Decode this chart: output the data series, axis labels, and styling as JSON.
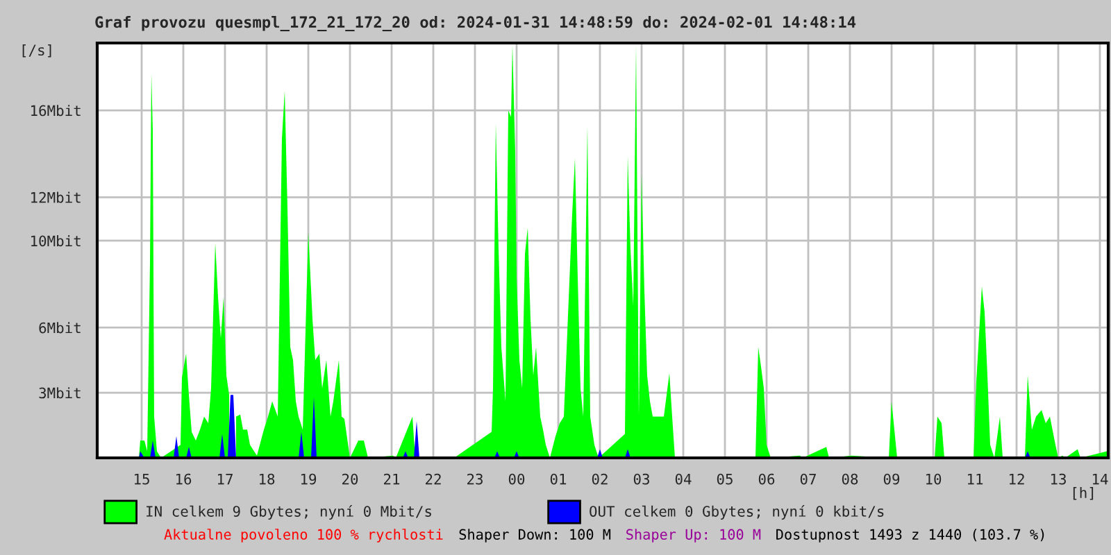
{
  "chart_data": {
    "type": "area",
    "title": "Graf provozu quesmpl_172_21_172_20 od: 2024-01-31 14:48:59 do: 2024-02-01 14:48:14",
    "xlabel": "[h]",
    "ylabel": "[/s]",
    "xlim": [
      "2024-01-31T13:56",
      "2024-02-01T14:12"
    ],
    "xticks": [
      {
        "value": "2024-01-31T15:00",
        "label": "15"
      },
      {
        "value": "2024-01-31T16:00",
        "label": "16"
      },
      {
        "value": "2024-01-31T17:00",
        "label": "17"
      },
      {
        "value": "2024-01-31T18:00",
        "label": "18"
      },
      {
        "value": "2024-01-31T19:00",
        "label": "19"
      },
      {
        "value": "2024-01-31T20:00",
        "label": "20"
      },
      {
        "value": "2024-01-31T21:00",
        "label": "21"
      },
      {
        "value": "2024-01-31T22:00",
        "label": "22"
      },
      {
        "value": "2024-01-31T23:00",
        "label": "23"
      },
      {
        "value": "2024-02-01T00:00",
        "label": "00"
      },
      {
        "value": "2024-02-01T01:00",
        "label": "01"
      },
      {
        "value": "2024-02-01T02:00",
        "label": "02"
      },
      {
        "value": "2024-02-01T03:00",
        "label": "03"
      },
      {
        "value": "2024-02-01T04:00",
        "label": "04"
      },
      {
        "value": "2024-02-01T05:00",
        "label": "05"
      },
      {
        "value": "2024-02-01T06:00",
        "label": "06"
      },
      {
        "value": "2024-02-01T07:00",
        "label": "07"
      },
      {
        "value": "2024-02-01T08:00",
        "label": "08"
      },
      {
        "value": "2024-02-01T09:00",
        "label": "09"
      },
      {
        "value": "2024-02-01T10:00",
        "label": "10"
      },
      {
        "value": "2024-02-01T11:00",
        "label": "11"
      },
      {
        "value": "2024-02-01T12:00",
        "label": "12"
      },
      {
        "value": "2024-02-01T13:00",
        "label": "13"
      },
      {
        "value": "2024-02-01T14:00",
        "label": "14"
      }
    ],
    "ylim": [
      0,
      19.1
    ],
    "yticks": [
      {
        "value": 3,
        "label": "3Mbit"
      },
      {
        "value": 6,
        "label": "6Mbit"
      },
      {
        "value": 10,
        "label": "10Mbit"
      },
      {
        "value": 12,
        "label": "12Mbit"
      },
      {
        "value": 16,
        "label": "16Mbit"
      }
    ],
    "grid": true,
    "legend": "bottom",
    "series": [
      {
        "name": "IN celkem 9 Gbytes; nyní 0 Mbit/s",
        "color": "#00ff00",
        "x": [
          "2024-01-31T13:56",
          "2024-01-31T14:56",
          "2024-01-31T14:58",
          "2024-01-31T15:04",
          "2024-01-31T15:08",
          "2024-01-31T15:12",
          "2024-01-31T15:14",
          "2024-01-31T15:16",
          "2024-01-31T15:18",
          "2024-01-31T15:22",
          "2024-01-31T15:28",
          "2024-01-31T15:56",
          "2024-01-31T15:58",
          "2024-01-31T16:04",
          "2024-01-31T16:08",
          "2024-01-31T16:12",
          "2024-01-31T16:18",
          "2024-01-31T16:24",
          "2024-01-31T16:30",
          "2024-01-31T16:36",
          "2024-01-31T16:40",
          "2024-01-31T16:46",
          "2024-01-31T16:50",
          "2024-01-31T16:54",
          "2024-01-31T16:58",
          "2024-01-31T17:02",
          "2024-01-31T17:06",
          "2024-01-31T17:10",
          "2024-01-31T17:16",
          "2024-01-31T17:22",
          "2024-01-31T17:26",
          "2024-01-31T17:32",
          "2024-01-31T17:36",
          "2024-01-31T17:46",
          "2024-01-31T17:56",
          "2024-01-31T18:02",
          "2024-01-31T18:08",
          "2024-01-31T18:16",
          "2024-01-31T18:22",
          "2024-01-31T18:26",
          "2024-01-31T18:30",
          "2024-01-31T18:34",
          "2024-01-31T18:38",
          "2024-01-31T18:42",
          "2024-01-31T18:46",
          "2024-01-31T18:52",
          "2024-01-31T19:00",
          "2024-01-31T19:06",
          "2024-01-31T19:10",
          "2024-01-31T19:16",
          "2024-01-31T19:20",
          "2024-01-31T19:26",
          "2024-01-31T19:32",
          "2024-01-31T19:36",
          "2024-01-31T19:44",
          "2024-01-31T19:48",
          "2024-01-31T19:52",
          "2024-01-31T20:00",
          "2024-01-31T20:12",
          "2024-01-31T20:20",
          "2024-01-31T20:26",
          "2024-01-31T21:02",
          "2024-01-31T21:06",
          "2024-01-31T21:30",
          "2024-01-31T21:34",
          "2024-01-31T22:30",
          "2024-01-31T23:24",
          "2024-01-31T23:26",
          "2024-01-31T23:30",
          "2024-01-31T23:34",
          "2024-01-31T23:38",
          "2024-01-31T23:44",
          "2024-01-31T23:48",
          "2024-01-31T23:52",
          "2024-01-31T23:54",
          "2024-01-31T23:58",
          "2024-02-01T00:00",
          "2024-02-01T00:04",
          "2024-02-01T00:08",
          "2024-02-01T00:12",
          "2024-02-01T00:16",
          "2024-02-01T00:20",
          "2024-02-01T00:24",
          "2024-02-01T00:28",
          "2024-02-01T00:34",
          "2024-02-01T00:38",
          "2024-02-01T00:42",
          "2024-02-01T00:48",
          "2024-02-01T00:56",
          "2024-02-01T01:02",
          "2024-02-01T01:08",
          "2024-02-01T01:16",
          "2024-02-01T01:20",
          "2024-02-01T01:24",
          "2024-02-01T01:28",
          "2024-02-01T01:32",
          "2024-02-01T01:36",
          "2024-02-01T01:42",
          "2024-02-01T01:46",
          "2024-02-01T01:52",
          "2024-02-01T01:58",
          "2024-02-01T02:36",
          "2024-02-01T02:40",
          "2024-02-01T02:44",
          "2024-02-01T02:48",
          "2024-02-01T02:52",
          "2024-02-01T02:56",
          "2024-02-01T03:00",
          "2024-02-01T03:04",
          "2024-02-01T03:08",
          "2024-02-01T03:12",
          "2024-02-01T03:16",
          "2024-02-01T03:24",
          "2024-02-01T03:32",
          "2024-02-01T03:40",
          "2024-02-01T03:44",
          "2024-02-01T03:48",
          "2024-02-01T05:44",
          "2024-02-01T05:48",
          "2024-02-01T05:52",
          "2024-02-01T05:56",
          "2024-02-01T06:00",
          "2024-02-01T06:06",
          "2024-02-01T06:48",
          "2024-02-01T06:52",
          "2024-02-01T07:26",
          "2024-02-01T07:30",
          "2024-02-01T08:02",
          "2024-02-01T08:56",
          "2024-02-01T09:00",
          "2024-02-01T09:04",
          "2024-02-01T09:08",
          "2024-02-01T10:02",
          "2024-02-01T10:06",
          "2024-02-01T10:12",
          "2024-02-01T10:16",
          "2024-02-01T10:58",
          "2024-02-01T11:02",
          "2024-02-01T11:10",
          "2024-02-01T11:14",
          "2024-02-01T11:18",
          "2024-02-01T11:22",
          "2024-02-01T11:28",
          "2024-02-01T11:36",
          "2024-02-01T11:40",
          "2024-02-01T12:12",
          "2024-02-01T12:16",
          "2024-02-01T12:22",
          "2024-02-01T12:28",
          "2024-02-01T12:36",
          "2024-02-01T12:42",
          "2024-02-01T12:48",
          "2024-02-01T12:56",
          "2024-02-01T13:00",
          "2024-02-01T13:06",
          "2024-02-01T13:10",
          "2024-02-01T13:28",
          "2024-02-01T13:32",
          "2024-02-01T14:10"
        ],
        "values": [
          0,
          0,
          0.8,
          0.8,
          0.3,
          9.0,
          17.7,
          15.1,
          1.9,
          0.3,
          0,
          0.6,
          3.7,
          4.8,
          2.9,
          1.2,
          0.8,
          1.3,
          1.9,
          1.6,
          3.2,
          9.9,
          7.4,
          5.5,
          7.4,
          3.8,
          2.9,
          null,
          1.9,
          2.0,
          1.3,
          1.3,
          0.6,
          0.1,
          1.3,
          1.9,
          2.6,
          1.9,
          14.7,
          16.9,
          11.5,
          5.1,
          4.5,
          2.6,
          1.9,
          1.3,
          10.4,
          6.4,
          4.5,
          4.8,
          3.2,
          4.5,
          1.9,
          2.6,
          4.5,
          1.9,
          1.8,
          0,
          0.8,
          0.8,
          0,
          0.1,
          0,
          1.9,
          0,
          0,
          1.2,
          3.2,
          15.4,
          9.6,
          5.1,
          2.6,
          16.0,
          15.7,
          19.0,
          14.1,
          8.3,
          4.5,
          3.2,
          9.4,
          10.6,
          6.4,
          3.8,
          5.1,
          1.9,
          1.3,
          0.6,
          0,
          1.0,
          1.6,
          1.9,
          8.1,
          11.2,
          13.8,
          8.3,
          3.2,
          1.9,
          15.3,
          1.9,
          0.6,
          0,
          1.1,
          13.9,
          9.6,
          7.0,
          19.0,
          1.9,
          13.1,
          7.7,
          3.8,
          2.6,
          1.9,
          1.9,
          1.9,
          3.9,
          1.9,
          0,
          0,
          5.1,
          4.2,
          3.2,
          0.6,
          0,
          0.1,
          0,
          0.5,
          0,
          0.1,
          0,
          2.6,
          1.3,
          0,
          0,
          1.9,
          1.6,
          0,
          0,
          3.5,
          7.9,
          6.7,
          3.8,
          0.6,
          0,
          1.9,
          0,
          0,
          3.8,
          1.3,
          1.9,
          2.2,
          1.6,
          1.9,
          0.6,
          0,
          0.1,
          0,
          0.4,
          0,
          0.3
        ]
      },
      {
        "name": "OUT celkem 0 Gbytes; nyní 0 kbit/s",
        "color": "#0000ff",
        "x": [
          "2024-01-31T13:56",
          "2024-01-31T14:56",
          "2024-01-31T14:58",
          "2024-01-31T15:04",
          "2024-01-31T15:12",
          "2024-01-31T15:16",
          "2024-01-31T15:20",
          "2024-01-31T15:46",
          "2024-01-31T15:50",
          "2024-01-31T15:54",
          "2024-01-31T16:04",
          "2024-01-31T16:08",
          "2024-01-31T16:12",
          "2024-01-31T16:52",
          "2024-01-31T16:56",
          "2024-01-31T17:00",
          "2024-01-31T17:04",
          "2024-01-31T17:08",
          "2024-01-31T17:12",
          "2024-01-31T17:16",
          "2024-01-31T18:46",
          "2024-01-31T18:50",
          "2024-01-31T18:54",
          "2024-01-31T19:04",
          "2024-01-31T19:08",
          "2024-01-31T19:12",
          "2024-01-31T21:16",
          "2024-01-31T21:20",
          "2024-01-31T21:24",
          "2024-01-31T21:32",
          "2024-01-31T21:36",
          "2024-01-31T21:40",
          "2024-01-31T23:28",
          "2024-01-31T23:32",
          "2024-01-31T23:36",
          "2024-01-31T23:56",
          "2024-02-01T00:00",
          "2024-02-01T00:04",
          "2024-02-01T01:56",
          "2024-02-01T02:00",
          "2024-02-01T02:04",
          "2024-02-01T02:36",
          "2024-02-01T02:40",
          "2024-02-01T02:44",
          "2024-02-01T12:12",
          "2024-02-01T12:16",
          "2024-02-01T12:20",
          "2024-02-01T14:12"
        ],
        "values": [
          0,
          0,
          0.3,
          0,
          0,
          0.8,
          0,
          0,
          1.0,
          0,
          0,
          0.5,
          0,
          0,
          1.1,
          0,
          0,
          2.9,
          2.9,
          0,
          0,
          1.2,
          0,
          0,
          2.8,
          0,
          0,
          0.3,
          0,
          0,
          1.7,
          0,
          0,
          0.3,
          0,
          0,
          0.3,
          0,
          0,
          0.4,
          0,
          0,
          0.4,
          0,
          0,
          0.3,
          0,
          0
        ]
      }
    ],
    "annotations": [
      "Aktualne povoleno 100 % rychlosti",
      "Shaper Down: 100 M",
      "Shaper Up: 100 M",
      "Dostupnost 1493 z 1440 (103.7 %)"
    ]
  }
}
